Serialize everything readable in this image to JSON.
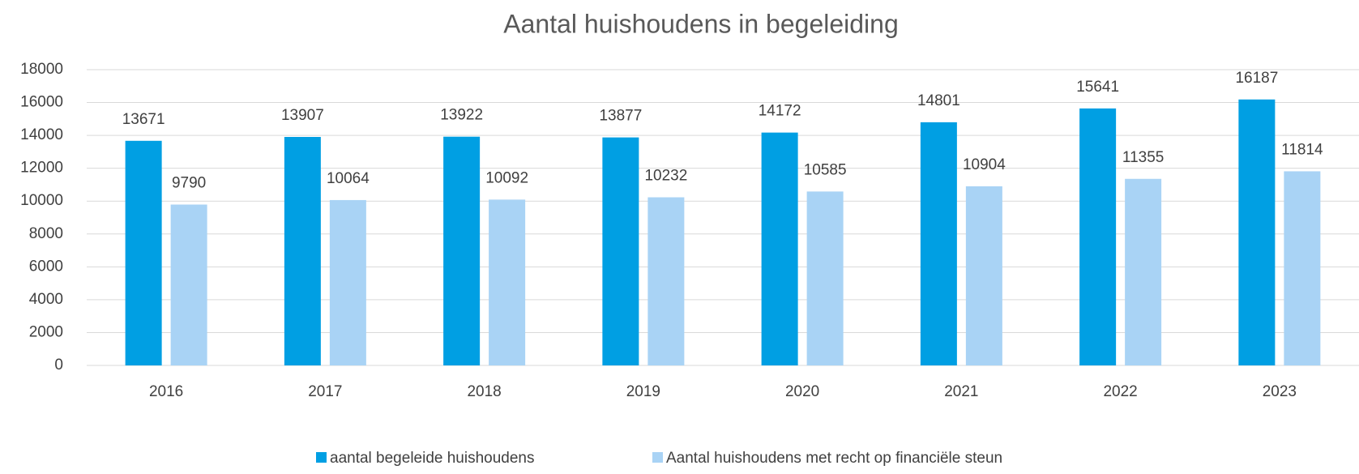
{
  "chart_data": {
    "type": "bar",
    "title": "Aantal huishoudens in begeleiding",
    "categories": [
      "2016",
      "2017",
      "2018",
      "2019",
      "2020",
      "2021",
      "2022",
      "2023"
    ],
    "series": [
      {
        "name": "aantal begeleide huishoudens",
        "color": "#009fe3",
        "values": [
          13671,
          13907,
          13922,
          13877,
          14172,
          14801,
          15641,
          16187
        ]
      },
      {
        "name": "Aantal huishoudens met recht op financiële steun",
        "color": "#a9d3f5",
        "values": [
          9790,
          10064,
          10092,
          10232,
          10585,
          10904,
          11355,
          11814
        ]
      }
    ],
    "ylim": [
      0,
      18000
    ],
    "yticks": [
      0,
      2000,
      4000,
      6000,
      8000,
      10000,
      12000,
      14000,
      16000,
      18000
    ],
    "grid": true,
    "legend": "bottom"
  }
}
